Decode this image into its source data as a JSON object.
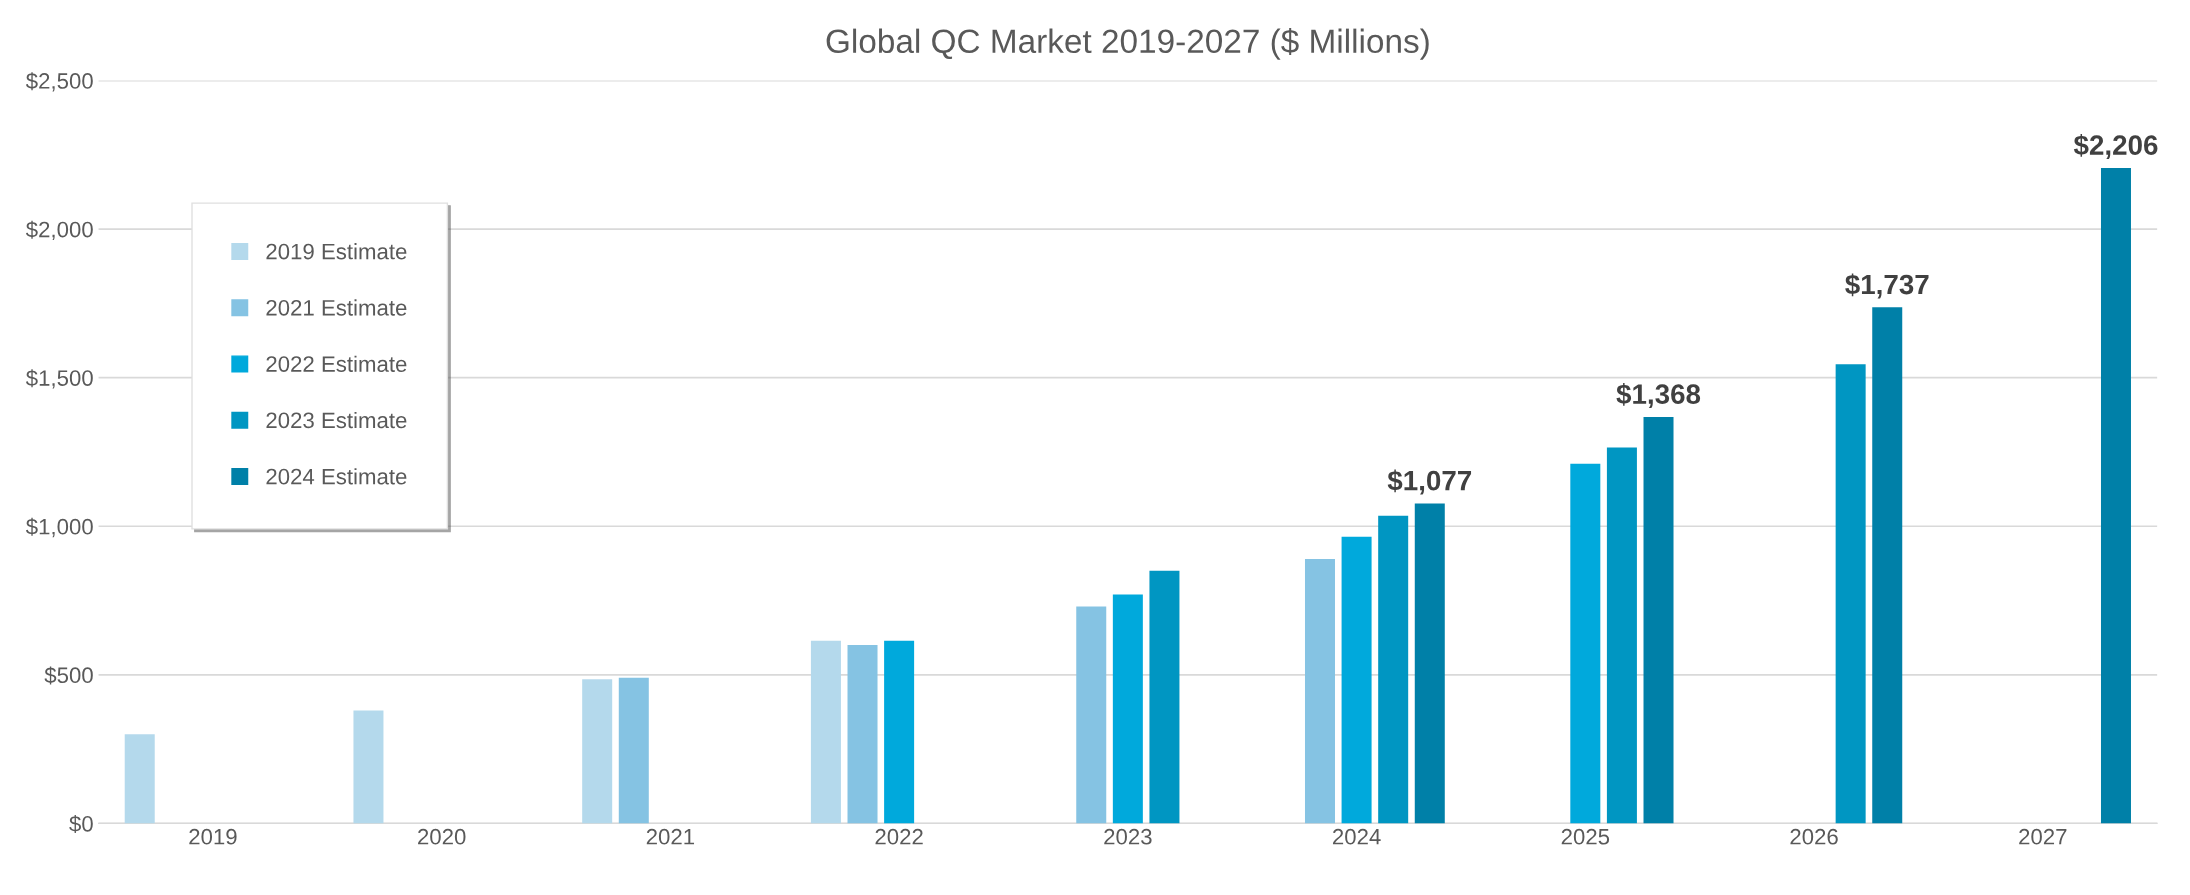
{
  "chart_data": {
    "type": "bar",
    "title": "Global QC Market 2019-2027 ($ Millions)",
    "categories": [
      "2019",
      "2020",
      "2021",
      "2022",
      "2023",
      "2024",
      "2025",
      "2026",
      "2027"
    ],
    "series": [
      {
        "name": "2019 Estimate",
        "color": "#b4d9ec",
        "values": [
          300,
          380,
          485,
          615,
          null,
          null,
          null,
          null,
          null
        ]
      },
      {
        "name": "2021 Estimate",
        "color": "#85c3e3",
        "values": [
          null,
          null,
          490,
          600,
          730,
          890,
          null,
          null,
          null
        ]
      },
      {
        "name": "2022 Estimate",
        "color": "#00a9dc",
        "values": [
          null,
          null,
          null,
          615,
          770,
          965,
          1210,
          null,
          null
        ]
      },
      {
        "name": "2023 Estimate",
        "color": "#0096c2",
        "values": [
          null,
          null,
          null,
          null,
          850,
          1035,
          1265,
          1545,
          null
        ]
      },
      {
        "name": "2024 Estimate",
        "color": "#0080a8",
        "values": [
          null,
          null,
          null,
          null,
          null,
          1077,
          1368,
          1737,
          2206
        ],
        "value_labels": [
          null,
          null,
          null,
          null,
          null,
          "$1,077",
          "$1,368",
          "$1,737",
          "$2,206"
        ]
      }
    ],
    "ylim": [
      0,
      2500
    ],
    "yticks": [
      {
        "value": 0,
        "label": "$0"
      },
      {
        "value": 500,
        "label": "$500"
      },
      {
        "value": 1000,
        "label": "$1,000"
      },
      {
        "value": 1500,
        "label": "$1,500"
      },
      {
        "value": 2000,
        "label": "$2,000"
      },
      {
        "value": 2500,
        "label": "$2,500"
      }
    ],
    "grid": "y",
    "legend": "top left"
  }
}
